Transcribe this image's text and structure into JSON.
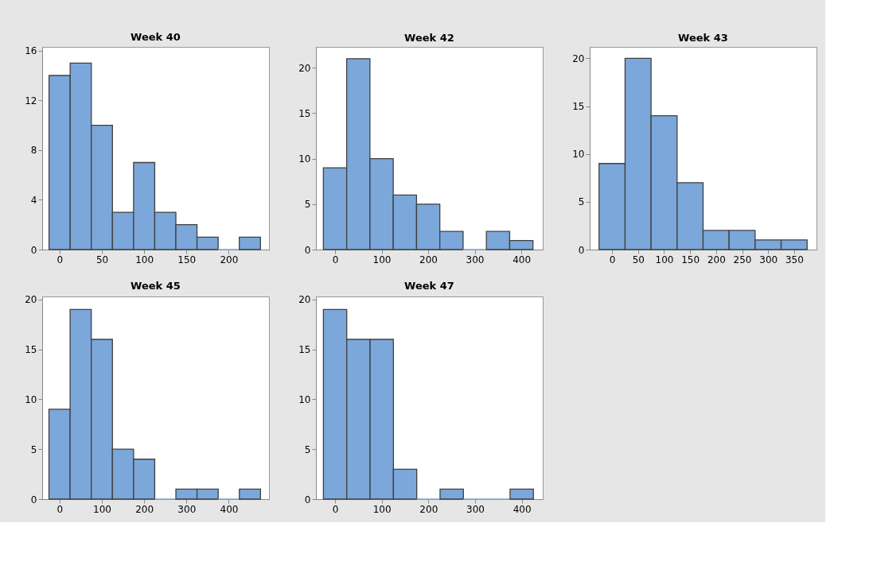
{
  "chart_data": [
    {
      "type": "histogram",
      "title": "Week 40",
      "bins": [
        -12.5,
        12.5,
        37.5,
        62.5,
        87.5,
        112.5,
        137.5,
        162.5,
        187.5,
        212.5,
        237.5
      ],
      "values": [
        14,
        15,
        10,
        3,
        7,
        3,
        2,
        1,
        0,
        1
      ],
      "color": "#7ba7da",
      "xlim": [
        -20.6,
        247.6
      ],
      "ylim": [
        0,
        16.3
      ],
      "xticks": [
        0,
        50,
        100,
        150,
        200
      ],
      "yticks": [
        0,
        4,
        8,
        12,
        16
      ],
      "grid": false
    },
    {
      "type": "histogram",
      "title": "Week 42",
      "bins": [
        -25,
        25,
        75,
        125,
        175,
        225,
        275,
        325,
        375,
        425
      ],
      "values": [
        9,
        21,
        10,
        6,
        5,
        2,
        0,
        2,
        1
      ],
      "color": "#7ba7da",
      "xlim": [
        -41,
        446
      ],
      "ylim": [
        0,
        22.3
      ],
      "xticks": [
        0,
        100,
        200,
        300,
        400
      ],
      "yticks": [
        0,
        5,
        10,
        15,
        20
      ],
      "grid": false
    },
    {
      "type": "histogram",
      "title": "Week 43",
      "bins": [
        -25,
        25,
        75,
        125,
        175,
        225,
        275,
        325,
        375
      ],
      "values": [
        9,
        20,
        14,
        7,
        2,
        2,
        1,
        1
      ],
      "color": "#7ba7da",
      "xlim": [
        -43,
        393
      ],
      "ylim": [
        0,
        21.2
      ],
      "xticks": [
        0,
        50,
        100,
        150,
        200,
        250,
        300,
        350
      ],
      "yticks": [
        0,
        5,
        10,
        15,
        20
      ],
      "grid": false
    },
    {
      "type": "histogram",
      "title": "Week 45",
      "bins": [
        -25,
        25,
        75,
        125,
        175,
        225,
        275,
        325,
        375,
        425,
        475
      ],
      "values": [
        9,
        19,
        16,
        5,
        4,
        0,
        1,
        1,
        0,
        1
      ],
      "color": "#7ba7da",
      "xlim": [
        -41,
        495
      ],
      "ylim": [
        0,
        20.3
      ],
      "xticks": [
        0,
        100,
        200,
        300,
        400
      ],
      "yticks": [
        0,
        5,
        10,
        15,
        20
      ],
      "grid": false
    },
    {
      "type": "histogram",
      "title": "Week 47",
      "bins": [
        -25,
        25,
        75,
        125,
        175,
        225,
        275,
        325,
        375,
        425
      ],
      "values": [
        19,
        16,
        16,
        3,
        0,
        1,
        0,
        0,
        1
      ],
      "color": "#7ba7da",
      "xlim": [
        -41,
        445
      ],
      "ylim": [
        0,
        20.3
      ],
      "xticks": [
        0,
        100,
        200,
        300,
        400
      ],
      "yticks": [
        0,
        5,
        10,
        15,
        20
      ],
      "grid": false
    }
  ]
}
